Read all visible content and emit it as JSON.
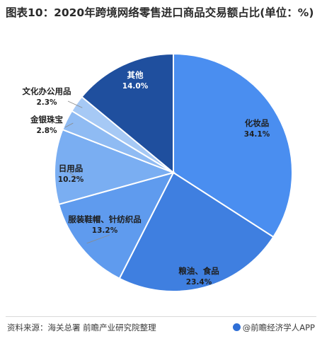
{
  "title": "图表10：2020年跨境网络零售进口商品交易额占比(单位：%)",
  "footer": {
    "source": "资料来源：海关总署 前瞻产业研究院整理",
    "brand": "@前瞻经济学人APP"
  },
  "colors": {
    "slices": [
      "#4a8ef0",
      "#3f7fe0",
      "#5f9bee",
      "#7aaef2",
      "#8fbbf3",
      "#a6c9f5",
      "#1f4f9e"
    ]
  },
  "chart_data": {
    "type": "pie",
    "title": "图表10：2020年跨境网络零售进口商品交易额占比(单位：%)",
    "unit": "%",
    "slices": [
      {
        "name": "化妆品",
        "value": 34.1,
        "label": "34.1%"
      },
      {
        "name": "粮油、食品",
        "value": 23.4,
        "label": "23.4%"
      },
      {
        "name": "服装鞋帽、针纺织品",
        "value": 13.2,
        "label": "13.2%"
      },
      {
        "name": "日用品",
        "value": 10.2,
        "label": "10.2%"
      },
      {
        "name": "金银珠宝",
        "value": 2.8,
        "label": "2.8%"
      },
      {
        "name": "文化办公用品",
        "value": 2.3,
        "label": "2.3%"
      },
      {
        "name": "其他",
        "value": 14.0,
        "label": "14.0%"
      }
    ]
  }
}
